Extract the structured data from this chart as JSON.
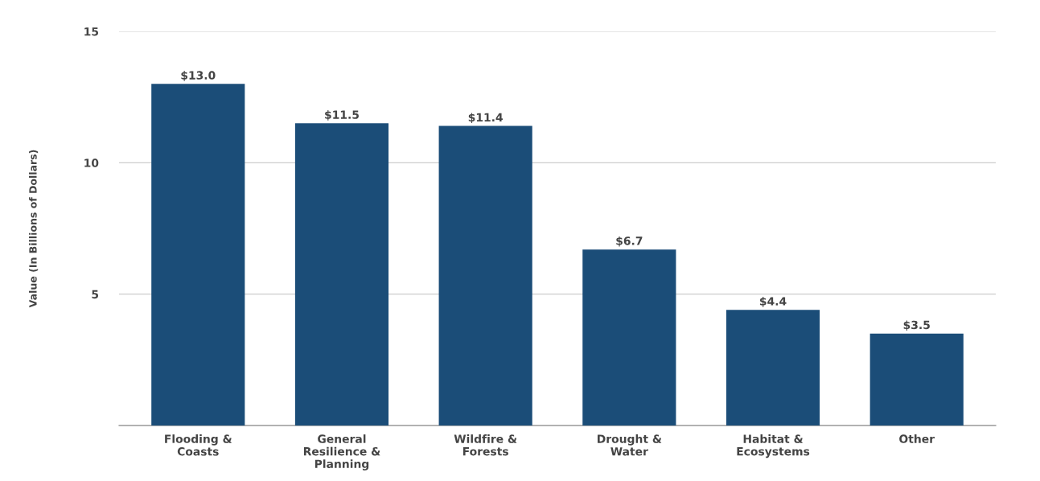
{
  "chart_data": {
    "type": "bar",
    "ylabel": "Value (In Billions of Dollars)",
    "categories": [
      "Flooding &\nCoasts",
      "General\nResilience &\nPlanning",
      "Wildfire &\nForests",
      "Drought &\nWater",
      "Habitat &\nEcosystems",
      "Other"
    ],
    "values": [
      13.0,
      11.5,
      11.4,
      6.7,
      4.4,
      3.5
    ],
    "value_labels": [
      "$13.0",
      "$11.5",
      "$11.4",
      "$6.7",
      "$4.4",
      "$3.5"
    ],
    "color": "#1b4d78",
    "ylim": [
      0,
      15
    ],
    "yticks": [
      5,
      10,
      15
    ],
    "grid": "y",
    "legend": false
  }
}
